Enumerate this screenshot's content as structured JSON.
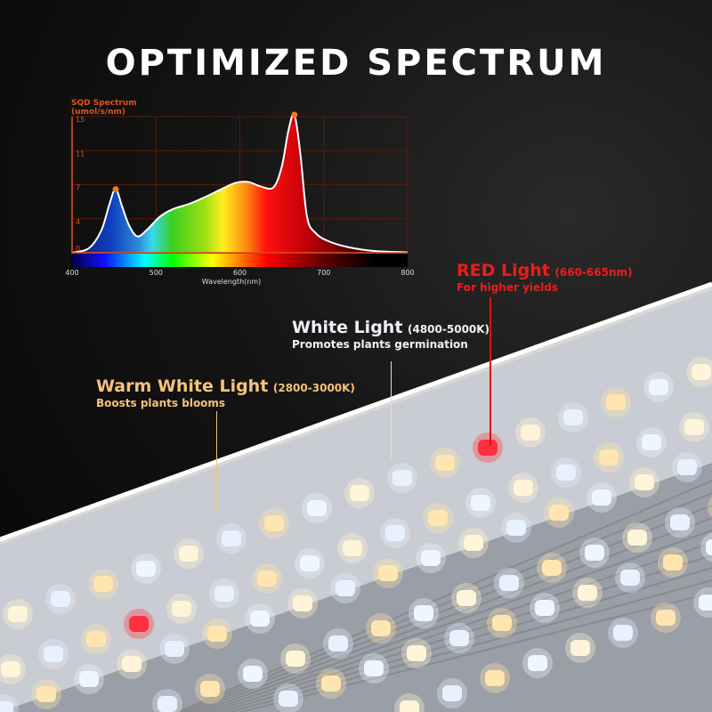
{
  "title": "OPTIMIZED SPECTRUM",
  "chart_data": {
    "type": "area",
    "title": "SQD Spectrum",
    "ylabel": "(umol/s/nm)",
    "xlabel": "Wavelength(nm)",
    "xlim": [
      400,
      800
    ],
    "ylim": [
      0,
      15
    ],
    "x_ticks": [
      "400",
      "500",
      "600",
      "700",
      "800"
    ],
    "y_ticks": [
      "0",
      "4",
      "7",
      "11",
      "15"
    ],
    "grid": true,
    "x": [
      400,
      420,
      435,
      445,
      452,
      460,
      468,
      478,
      490,
      505,
      520,
      540,
      560,
      580,
      595,
      610,
      625,
      640,
      650,
      658,
      665,
      672,
      680,
      690,
      705,
      730,
      760,
      800
    ],
    "y": [
      0,
      0.5,
      2.5,
      5.5,
      7,
      5,
      3,
      1.8,
      2.6,
      4,
      4.8,
      5.4,
      6.2,
      7.1,
      7.7,
      7.8,
      7.3,
      7.2,
      9.5,
      13.5,
      15.2,
      11,
      4,
      2.2,
      1.3,
      0.6,
      0.2,
      0.05
    ],
    "peaks": [
      {
        "x": 452,
        "y": 7
      },
      {
        "x": 665,
        "y": 15.2
      }
    ],
    "colors": {
      "axis": "#e0541c",
      "curve": "#ffffff",
      "marker": "#f07a1c"
    }
  },
  "callouts": {
    "red": {
      "name": "RED Light",
      "range": "(660-665nm)",
      "desc": "For higher yields",
      "color": "#ee1c1c"
    },
    "white": {
      "name": "White Light",
      "range": "(4800-5000K)",
      "desc": "Promotes plants germination",
      "color": "#eef1f8"
    },
    "warm": {
      "name": "Warm White Light",
      "range": "(2800-3000K)",
      "desc": "Boosts plants blooms",
      "color": "#f6c27a"
    }
  }
}
